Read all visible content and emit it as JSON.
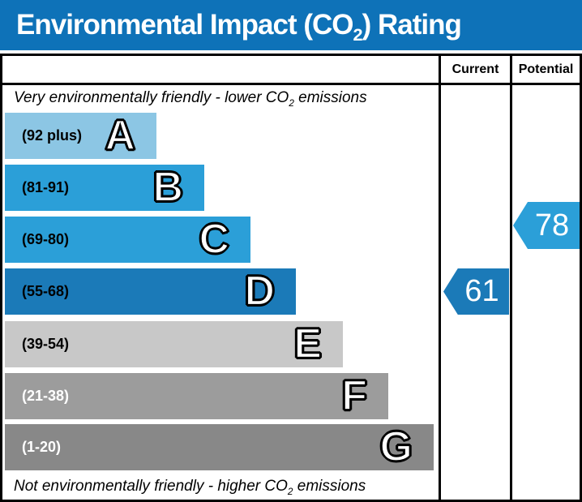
{
  "title": {
    "prefix": "Environmental Impact (CO",
    "sub": "2",
    "suffix": ") Rating"
  },
  "columns": {
    "current": "Current",
    "potential": "Potential"
  },
  "captions": {
    "top": {
      "prefix": "Very environmentally friendly - lower CO",
      "sub": "2",
      "suffix": " emissions"
    },
    "bottom": {
      "prefix": "Not environmentally friendly - higher CO",
      "sub": "2",
      "suffix": " emissions"
    }
  },
  "colors": {
    "header_blue": "#0e72b8",
    "band_a": "#8cc6e4",
    "band_b": "#2b9fd8",
    "band_c": "#2b9fd8",
    "band_d": "#1b7ab8",
    "band_e": "#c8c8c8",
    "band_f": "#9c9c9c",
    "band_g": "#888888"
  },
  "chart_data": {
    "type": "rating-bands",
    "title": "Environmental Impact (CO2) Rating",
    "bands": [
      {
        "letter": "A",
        "range_label": "(92 plus)",
        "min": 92,
        "max": 100,
        "color": "#8cc6e4",
        "label_color": "#000000"
      },
      {
        "letter": "B",
        "range_label": "(81-91)",
        "min": 81,
        "max": 91,
        "color": "#2b9fd8",
        "label_color": "#000000"
      },
      {
        "letter": "C",
        "range_label": "(69-80)",
        "min": 69,
        "max": 80,
        "color": "#2b9fd8",
        "label_color": "#000000"
      },
      {
        "letter": "D",
        "range_label": "(55-68)",
        "min": 55,
        "max": 68,
        "color": "#1b7ab8",
        "label_color": "#000000"
      },
      {
        "letter": "E",
        "range_label": "(39-54)",
        "min": 39,
        "max": 54,
        "color": "#c8c8c8",
        "label_color": "#000000"
      },
      {
        "letter": "F",
        "range_label": "(21-38)",
        "min": 21,
        "max": 38,
        "color": "#9c9c9c",
        "label_color": "#ffffff"
      },
      {
        "letter": "G",
        "range_label": "(1-20)",
        "min": 1,
        "max": 20,
        "color": "#888888",
        "label_color": "#ffffff"
      }
    ],
    "current": {
      "value": 61,
      "band": "D",
      "color": "#1b7ab8"
    },
    "potential": {
      "value": 78,
      "band": "C",
      "color": "#2b9fd8"
    }
  }
}
